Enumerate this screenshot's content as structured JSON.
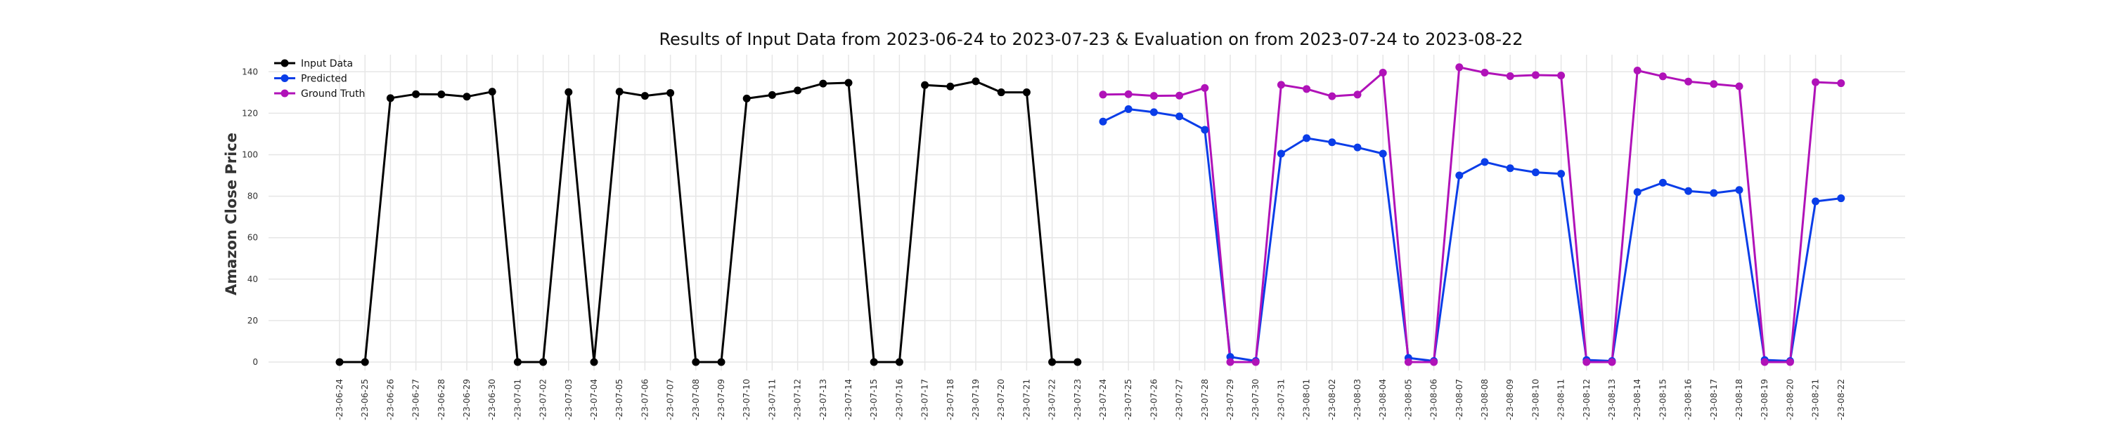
{
  "chart_data": {
    "type": "line",
    "title": "Results of Input Data from 2023-06-24 to 2023-07-23 & Evaluation on from 2023-07-24 to 2023-08-22",
    "xlabel": "",
    "ylabel": "Amazon Close Price",
    "ylim": [
      -6,
      148
    ],
    "yticks": [
      0,
      20,
      40,
      60,
      80,
      100,
      120,
      140
    ],
    "grid": true,
    "legend_position": "top-left",
    "categories": [
      "2023-06-24",
      "2023-06-25",
      "2023-06-26",
      "2023-06-27",
      "2023-06-28",
      "2023-06-29",
      "2023-06-30",
      "2023-07-01",
      "2023-07-02",
      "2023-07-03",
      "2023-07-04",
      "2023-07-05",
      "2023-07-06",
      "2023-07-07",
      "2023-07-08",
      "2023-07-09",
      "2023-07-10",
      "2023-07-11",
      "2023-07-12",
      "2023-07-13",
      "2023-07-14",
      "2023-07-15",
      "2023-07-16",
      "2023-07-17",
      "2023-07-18",
      "2023-07-19",
      "2023-07-20",
      "2023-07-21",
      "2023-07-22",
      "2023-07-23",
      "2023-07-24",
      "2023-07-25",
      "2023-07-26",
      "2023-07-27",
      "2023-07-28",
      "2023-07-29",
      "2023-07-30",
      "2023-07-31",
      "2023-08-01",
      "2023-08-02",
      "2023-08-03",
      "2023-08-04",
      "2023-08-05",
      "2023-08-06",
      "2023-08-07",
      "2023-08-08",
      "2023-08-09",
      "2023-08-10",
      "2023-08-11",
      "2023-08-12",
      "2023-08-13",
      "2023-08-14",
      "2023-08-15",
      "2023-08-16",
      "2023-08-17",
      "2023-08-18",
      "2023-08-19",
      "2023-08-20",
      "2023-08-21",
      "2023-08-22"
    ],
    "tick_labels": [
      "-23-06-24",
      "-23-06-25",
      "-23-06-26",
      "-23-06-27",
      "-23-06-28",
      "-23-06-29",
      "-23-06-30",
      "-23-07-01",
      "-23-07-02",
      "-23-07-03",
      "-23-07-04",
      "-23-07-05",
      "-23-07-06",
      "-23-07-07",
      "-23-07-08",
      "-23-07-09",
      "-23-07-10",
      "-23-07-11",
      "-23-07-12",
      "-23-07-13",
      "-23-07-14",
      "-23-07-15",
      "-23-07-16",
      "-23-07-17",
      "-23-07-18",
      "-23-07-19",
      "-23-07-20",
      "-23-07-21",
      "-23-07-22",
      "-23-07-23",
      "-23-07-24",
      "-23-07-25",
      "-23-07-26",
      "-23-07-27",
      "-23-07-28",
      "-23-07-29",
      "-23-07-30",
      "-23-07-31",
      "-23-08-01",
      "-23-08-02",
      "-23-08-03",
      "-23-08-04",
      "-23-08-05",
      "-23-08-06",
      "-23-08-07",
      "-23-08-08",
      "-23-08-09",
      "-23-08-10",
      "-23-08-11",
      "-23-08-12",
      "-23-08-13",
      "-23-08-14",
      "-23-08-15",
      "-23-08-16",
      "-23-08-17",
      "-23-08-18",
      "-23-08-19",
      "-23-08-20",
      "-23-08-21",
      "-23-08-22"
    ],
    "series": [
      {
        "name": "Input Data",
        "color": "#000000",
        "x": [
          "2023-06-24",
          "2023-06-25",
          "2023-06-26",
          "2023-06-27",
          "2023-06-28",
          "2023-06-29",
          "2023-06-30",
          "2023-07-01",
          "2023-07-02",
          "2023-07-03",
          "2023-07-04",
          "2023-07-05",
          "2023-07-06",
          "2023-07-07",
          "2023-07-08",
          "2023-07-09",
          "2023-07-10",
          "2023-07-11",
          "2023-07-12",
          "2023-07-13",
          "2023-07-14",
          "2023-07-15",
          "2023-07-16",
          "2023-07-17",
          "2023-07-18",
          "2023-07-19",
          "2023-07-20",
          "2023-07-21",
          "2023-07-22",
          "2023-07-23"
        ],
        "values": [
          0,
          0,
          127.3,
          129.2,
          129.1,
          128.0,
          130.4,
          0,
          0,
          130.2,
          0,
          130.4,
          128.4,
          129.8,
          0,
          0,
          127.1,
          128.8,
          131.0,
          134.3,
          134.7,
          0,
          0,
          133.6,
          132.9,
          135.4,
          130.1,
          130.1,
          0,
          0
        ]
      },
      {
        "name": "Predicted",
        "color": "#0a3de8",
        "x": [
          "2023-07-24",
          "2023-07-25",
          "2023-07-26",
          "2023-07-27",
          "2023-07-28",
          "2023-07-29",
          "2023-07-30",
          "2023-07-31",
          "2023-08-01",
          "2023-08-02",
          "2023-08-03",
          "2023-08-04",
          "2023-08-05",
          "2023-08-06",
          "2023-08-07",
          "2023-08-08",
          "2023-08-09",
          "2023-08-10",
          "2023-08-11",
          "2023-08-12",
          "2023-08-13",
          "2023-08-14",
          "2023-08-15",
          "2023-08-16",
          "2023-08-17",
          "2023-08-18",
          "2023-08-19",
          "2023-08-20",
          "2023-08-21",
          "2023-08-22"
        ],
        "values": [
          116.0,
          122.0,
          120.5,
          118.5,
          112.0,
          2.5,
          0.5,
          100.5,
          108.0,
          106.0,
          103.5,
          100.5,
          2.0,
          0.5,
          90.0,
          96.5,
          93.5,
          91.5,
          90.8,
          1.0,
          0.5,
          82.0,
          86.5,
          82.5,
          81.5,
          83.0,
          1.0,
          0.5,
          77.5,
          79.0
        ]
      },
      {
        "name": "Ground Truth",
        "color": "#b012b8",
        "x": [
          "2023-07-24",
          "2023-07-25",
          "2023-07-26",
          "2023-07-27",
          "2023-07-28",
          "2023-07-29",
          "2023-07-30",
          "2023-07-31",
          "2023-08-01",
          "2023-08-02",
          "2023-08-03",
          "2023-08-04",
          "2023-08-05",
          "2023-08-06",
          "2023-08-07",
          "2023-08-08",
          "2023-08-09",
          "2023-08-10",
          "2023-08-11",
          "2023-08-12",
          "2023-08-13",
          "2023-08-14",
          "2023-08-15",
          "2023-08-16",
          "2023-08-17",
          "2023-08-18",
          "2023-08-19",
          "2023-08-20",
          "2023-08-21",
          "2023-08-22"
        ],
        "values": [
          129.0,
          129.2,
          128.4,
          128.5,
          132.2,
          0,
          0,
          133.7,
          131.7,
          128.2,
          129.0,
          139.6,
          0,
          0,
          142.2,
          139.6,
          137.9,
          138.4,
          138.2,
          0,
          0,
          140.6,
          137.8,
          135.3,
          134.1,
          133.0,
          0,
          0,
          135.0,
          134.5
        ]
      }
    ]
  }
}
